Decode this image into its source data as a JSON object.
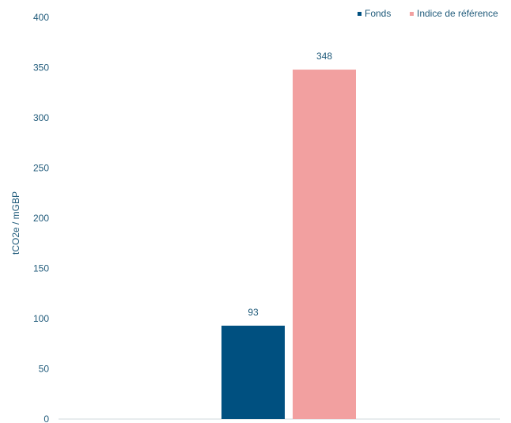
{
  "chart_data": {
    "type": "bar",
    "categories": [
      ""
    ],
    "series": [
      {
        "name": "Fonds",
        "values": [
          93
        ],
        "color": "#005080"
      },
      {
        "name": "Indice de référence",
        "values": [
          348
        ],
        "color": "#f2a0a0"
      }
    ],
    "ylabel": "tCO2e / mGBP",
    "ylim": [
      0,
      400
    ],
    "yticks": [
      0,
      50,
      100,
      150,
      200,
      250,
      300,
      350,
      400
    ],
    "grid": false,
    "legend_position": "top-right",
    "data_labels": true,
    "axis_color": "#1f5a7a"
  }
}
